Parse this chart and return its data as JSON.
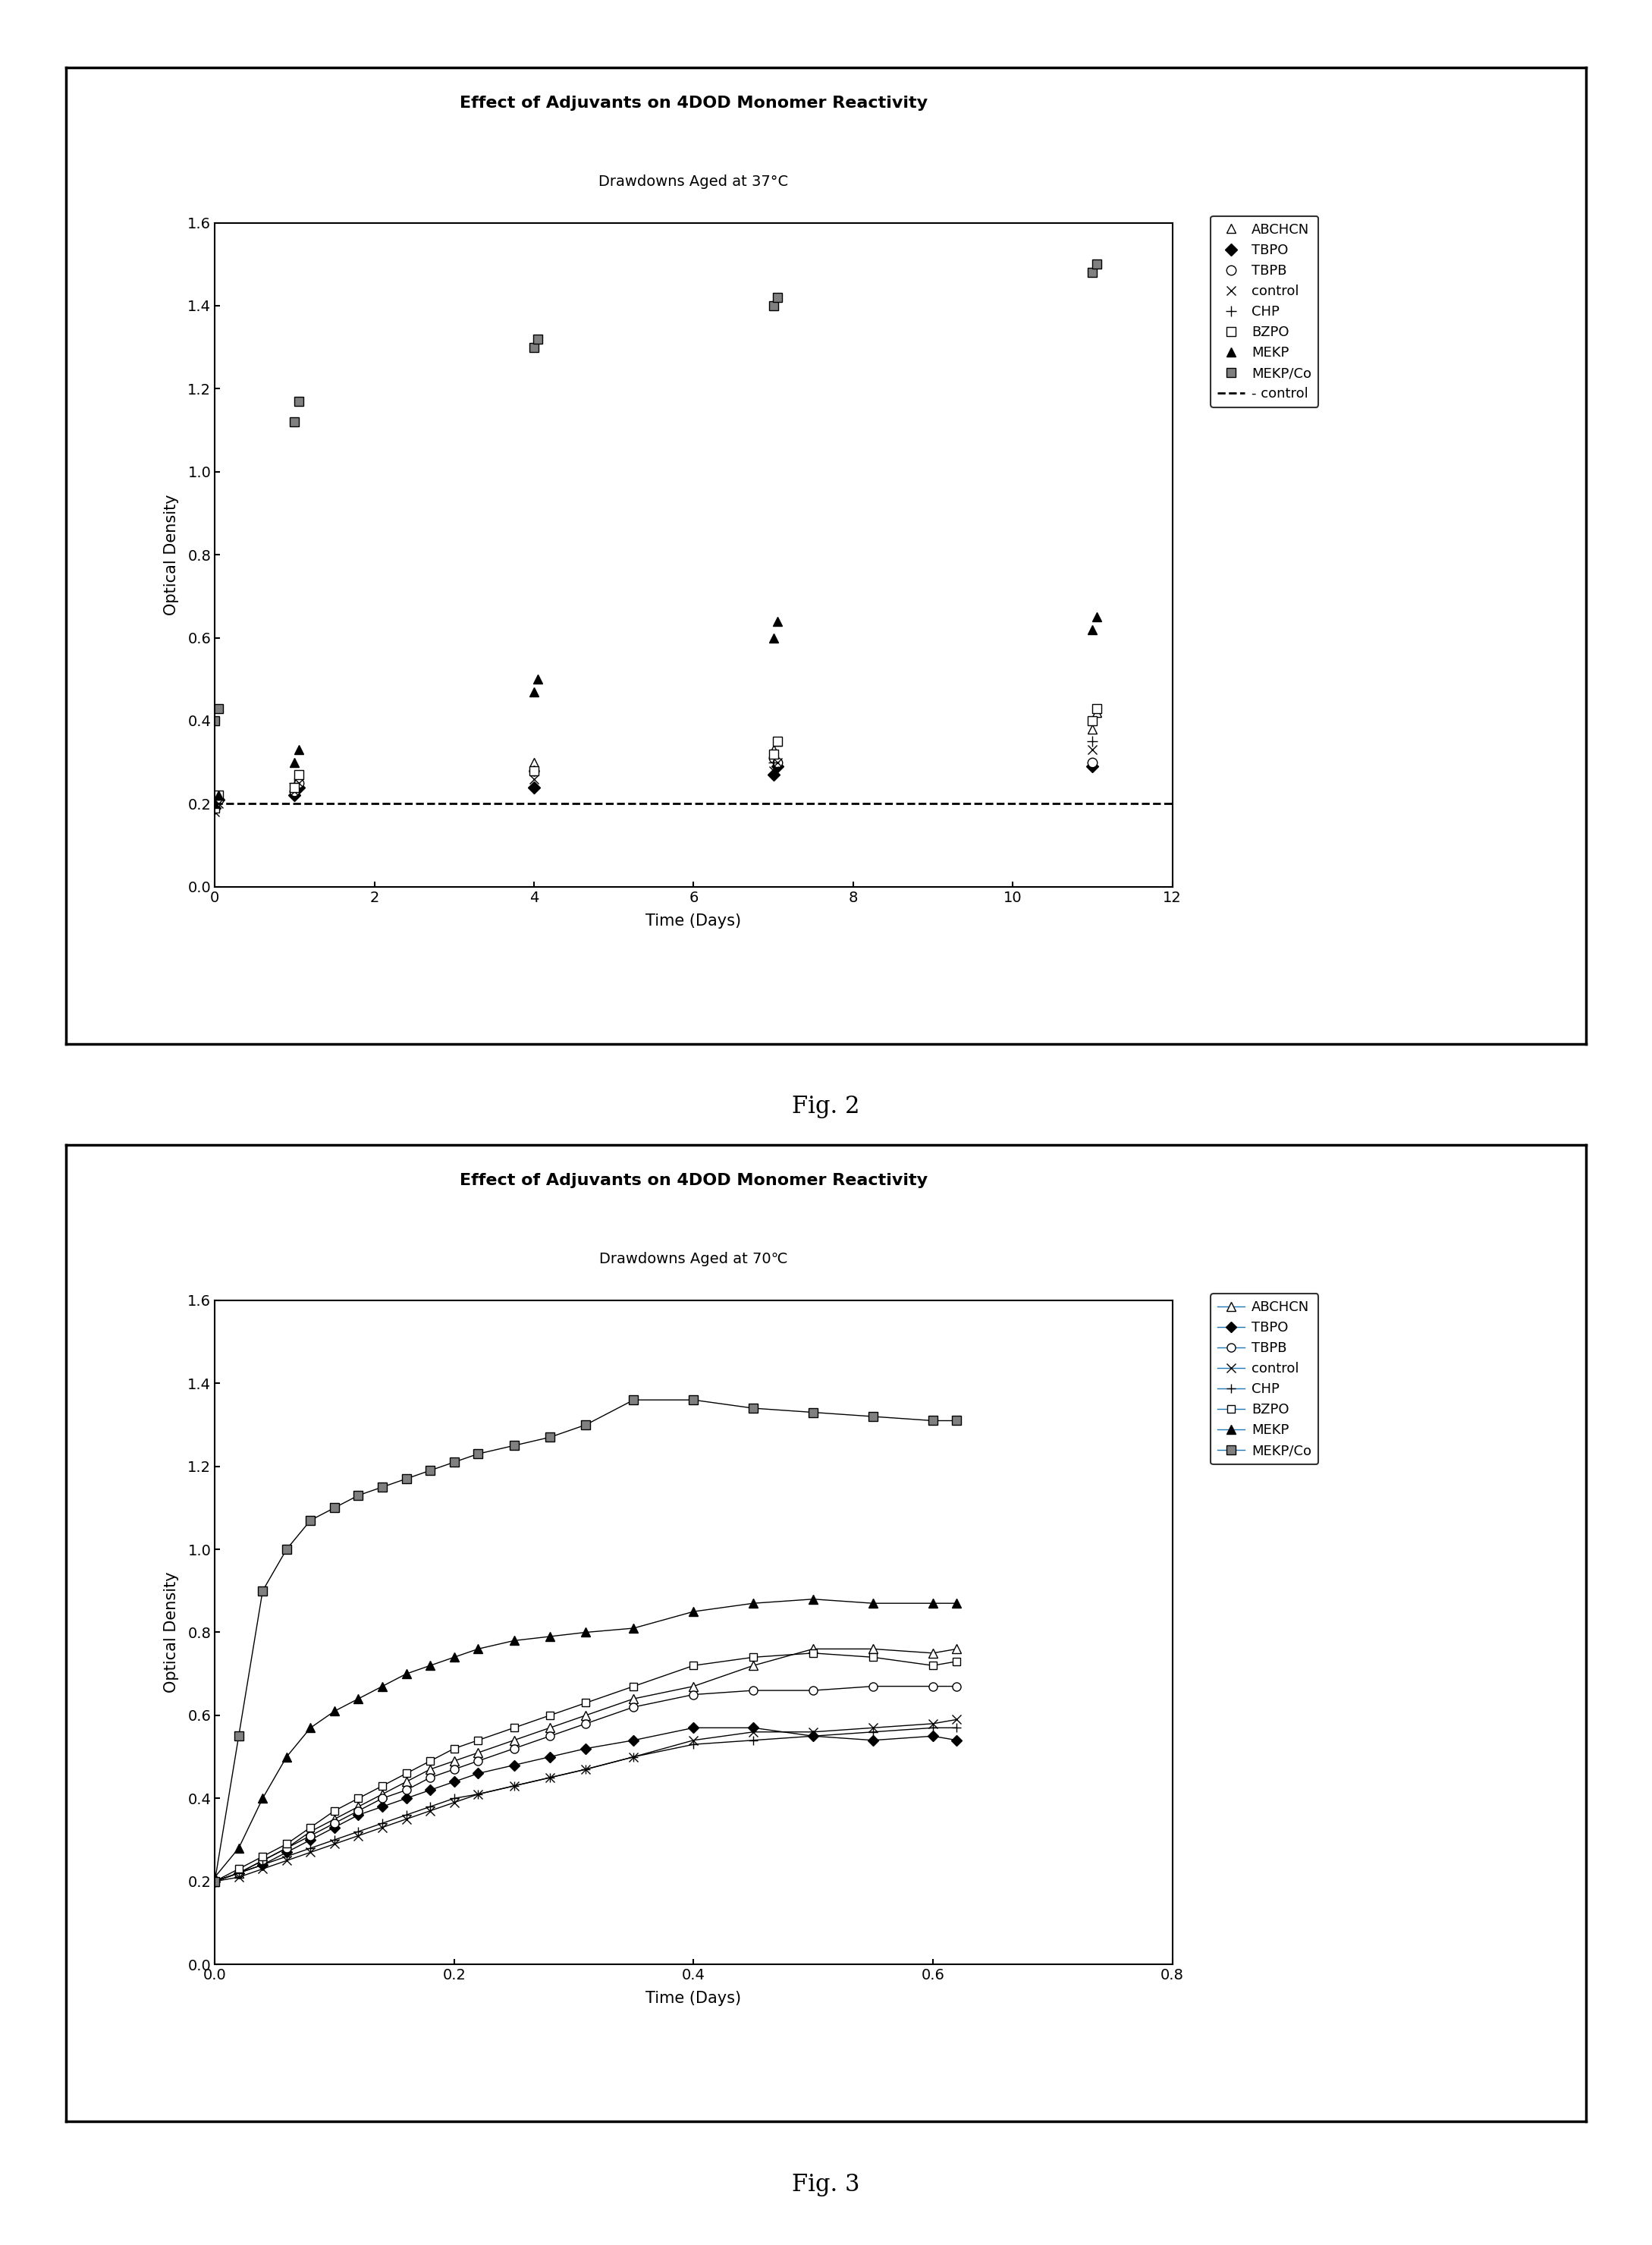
{
  "fig2": {
    "title": "Effect of Adjuvants on 4DOD Monomer Reactivity",
    "subtitle": "Drawdowns Aged at 37°C",
    "xlabel": "Time (Days)",
    "ylabel": "Optical Density",
    "xlim": [
      0,
      12
    ],
    "ylim": [
      0.0,
      1.6
    ],
    "xticks": [
      0,
      2,
      4,
      6,
      8,
      10,
      12
    ],
    "yticks": [
      0.0,
      0.2,
      0.4,
      0.6,
      0.8,
      1.0,
      1.2,
      1.4,
      1.6
    ],
    "series": {
      "ABCHCN": {
        "x": [
          0,
          0.05,
          1,
          1.05,
          4,
          7,
          7.05,
          11,
          11.05
        ],
        "y": [
          0.2,
          0.22,
          0.24,
          0.26,
          0.3,
          0.33,
          0.35,
          0.38,
          0.42
        ]
      },
      "TBPO": {
        "x": [
          0,
          0.05,
          1,
          1.05,
          4,
          7,
          7.05,
          11
        ],
        "y": [
          0.19,
          0.21,
          0.22,
          0.24,
          0.24,
          0.27,
          0.29,
          0.29
        ]
      },
      "TBPB": {
        "x": [
          0,
          0.05,
          1,
          1.05,
          4,
          7,
          7.05,
          11
        ],
        "y": [
          0.2,
          0.21,
          0.23,
          0.25,
          0.28,
          0.31,
          0.3,
          0.3
        ]
      },
      "control_x": {
        "x": [
          0,
          0.05,
          1,
          1.05,
          4,
          7,
          7.05,
          11
        ],
        "y": [
          0.18,
          0.2,
          0.23,
          0.25,
          0.26,
          0.28,
          0.3,
          0.33
        ]
      },
      "CHP": {
        "x": [
          0,
          1,
          4,
          7,
          11
        ],
        "y": [
          0.21,
          0.25,
          0.28,
          0.3,
          0.35
        ]
      },
      "BZPO": {
        "x": [
          0,
          0.05,
          1,
          1.05,
          4,
          7,
          7.05,
          11,
          11.05
        ],
        "y": [
          0.19,
          0.22,
          0.24,
          0.27,
          0.28,
          0.32,
          0.35,
          0.4,
          0.43
        ]
      },
      "MEKP": {
        "x": [
          0,
          0.05,
          1,
          1.05,
          4,
          4.05,
          7,
          7.05,
          11,
          11.05
        ],
        "y": [
          0.2,
          0.22,
          0.3,
          0.33,
          0.47,
          0.5,
          0.6,
          0.64,
          0.62,
          0.65
        ]
      },
      "MEKP_Co": {
        "x": [
          0,
          0.05,
          1,
          1.05,
          4,
          4.05,
          7,
          7.05,
          11,
          11.05
        ],
        "y": [
          0.4,
          0.43,
          1.12,
          1.17,
          1.3,
          1.32,
          1.4,
          1.42,
          1.48,
          1.5
        ]
      },
      "control_dash": {
        "x": [
          0,
          12
        ],
        "y": [
          0.2,
          0.2
        ]
      }
    }
  },
  "fig3": {
    "title": "Effect of Adjuvants on 4DOD Monomer Reactivity",
    "subtitle": "Drawdowns Aged at 70℃",
    "xlabel": "Time (Days)",
    "ylabel": "Optical Density",
    "xlim": [
      0.0,
      0.8
    ],
    "ylim": [
      0.0,
      1.6
    ],
    "xticks": [
      0.0,
      0.2,
      0.4,
      0.6,
      0.8
    ],
    "yticks": [
      0.0,
      0.2,
      0.4,
      0.6,
      0.8,
      1.0,
      1.2,
      1.4,
      1.6
    ],
    "series": {
      "ABCHCN": {
        "x": [
          0.0,
          0.02,
          0.04,
          0.06,
          0.08,
          0.1,
          0.12,
          0.14,
          0.16,
          0.18,
          0.2,
          0.22,
          0.25,
          0.28,
          0.31,
          0.35,
          0.4,
          0.45,
          0.5,
          0.55,
          0.6,
          0.62
        ],
        "y": [
          0.2,
          0.22,
          0.25,
          0.28,
          0.32,
          0.35,
          0.38,
          0.41,
          0.44,
          0.47,
          0.49,
          0.51,
          0.54,
          0.57,
          0.6,
          0.64,
          0.67,
          0.72,
          0.76,
          0.76,
          0.75,
          0.76
        ]
      },
      "TBPO": {
        "x": [
          0.0,
          0.02,
          0.04,
          0.06,
          0.08,
          0.1,
          0.12,
          0.14,
          0.16,
          0.18,
          0.2,
          0.22,
          0.25,
          0.28,
          0.31,
          0.35,
          0.4,
          0.45,
          0.5,
          0.55,
          0.6,
          0.62
        ],
        "y": [
          0.2,
          0.22,
          0.24,
          0.27,
          0.3,
          0.33,
          0.36,
          0.38,
          0.4,
          0.42,
          0.44,
          0.46,
          0.48,
          0.5,
          0.52,
          0.54,
          0.57,
          0.57,
          0.55,
          0.54,
          0.55,
          0.54
        ]
      },
      "TBPB": {
        "x": [
          0.0,
          0.02,
          0.04,
          0.06,
          0.08,
          0.1,
          0.12,
          0.14,
          0.16,
          0.18,
          0.2,
          0.22,
          0.25,
          0.28,
          0.31,
          0.35,
          0.4,
          0.45,
          0.5,
          0.55,
          0.6,
          0.62
        ],
        "y": [
          0.2,
          0.22,
          0.25,
          0.28,
          0.31,
          0.34,
          0.37,
          0.4,
          0.42,
          0.45,
          0.47,
          0.49,
          0.52,
          0.55,
          0.58,
          0.62,
          0.65,
          0.66,
          0.66,
          0.67,
          0.67,
          0.67
        ]
      },
      "control_x": {
        "x": [
          0.0,
          0.02,
          0.04,
          0.06,
          0.08,
          0.1,
          0.12,
          0.14,
          0.16,
          0.18,
          0.2,
          0.22,
          0.25,
          0.28,
          0.31,
          0.35,
          0.4,
          0.45,
          0.5,
          0.55,
          0.6,
          0.62
        ],
        "y": [
          0.2,
          0.21,
          0.23,
          0.25,
          0.27,
          0.29,
          0.31,
          0.33,
          0.35,
          0.37,
          0.39,
          0.41,
          0.43,
          0.45,
          0.47,
          0.5,
          0.54,
          0.56,
          0.56,
          0.57,
          0.58,
          0.59
        ]
      },
      "CHP": {
        "x": [
          0.0,
          0.02,
          0.04,
          0.06,
          0.08,
          0.1,
          0.12,
          0.14,
          0.16,
          0.18,
          0.2,
          0.22,
          0.25,
          0.28,
          0.31,
          0.35,
          0.4,
          0.45,
          0.5,
          0.55,
          0.6,
          0.62
        ],
        "y": [
          0.2,
          0.22,
          0.24,
          0.26,
          0.28,
          0.3,
          0.32,
          0.34,
          0.36,
          0.38,
          0.4,
          0.41,
          0.43,
          0.45,
          0.47,
          0.5,
          0.53,
          0.54,
          0.55,
          0.56,
          0.57,
          0.57
        ]
      },
      "BZPO": {
        "x": [
          0.0,
          0.02,
          0.04,
          0.06,
          0.08,
          0.1,
          0.12,
          0.14,
          0.16,
          0.18,
          0.2,
          0.22,
          0.25,
          0.28,
          0.31,
          0.35,
          0.4,
          0.45,
          0.5,
          0.55,
          0.6,
          0.62
        ],
        "y": [
          0.2,
          0.23,
          0.26,
          0.29,
          0.33,
          0.37,
          0.4,
          0.43,
          0.46,
          0.49,
          0.52,
          0.54,
          0.57,
          0.6,
          0.63,
          0.67,
          0.72,
          0.74,
          0.75,
          0.74,
          0.72,
          0.73
        ]
      },
      "MEKP": {
        "x": [
          0.0,
          0.02,
          0.04,
          0.06,
          0.08,
          0.1,
          0.12,
          0.14,
          0.16,
          0.18,
          0.2,
          0.22,
          0.25,
          0.28,
          0.31,
          0.35,
          0.4,
          0.45,
          0.5,
          0.55,
          0.6,
          0.62
        ],
        "y": [
          0.21,
          0.28,
          0.4,
          0.5,
          0.57,
          0.61,
          0.64,
          0.67,
          0.7,
          0.72,
          0.74,
          0.76,
          0.78,
          0.79,
          0.8,
          0.81,
          0.85,
          0.87,
          0.88,
          0.87,
          0.87,
          0.87
        ]
      },
      "MEKP_Co": {
        "x": [
          0.0,
          0.02,
          0.04,
          0.06,
          0.08,
          0.1,
          0.12,
          0.14,
          0.16,
          0.18,
          0.2,
          0.22,
          0.25,
          0.28,
          0.31,
          0.35,
          0.4,
          0.45,
          0.5,
          0.55,
          0.6,
          0.62
        ],
        "y": [
          0.2,
          0.55,
          0.9,
          1.0,
          1.07,
          1.1,
          1.13,
          1.15,
          1.17,
          1.19,
          1.21,
          1.23,
          1.25,
          1.27,
          1.3,
          1.36,
          1.36,
          1.34,
          1.33,
          1.32,
          1.31,
          1.31
        ]
      }
    }
  },
  "fig2_caption": "Fig. 2",
  "fig3_caption": "Fig. 3"
}
